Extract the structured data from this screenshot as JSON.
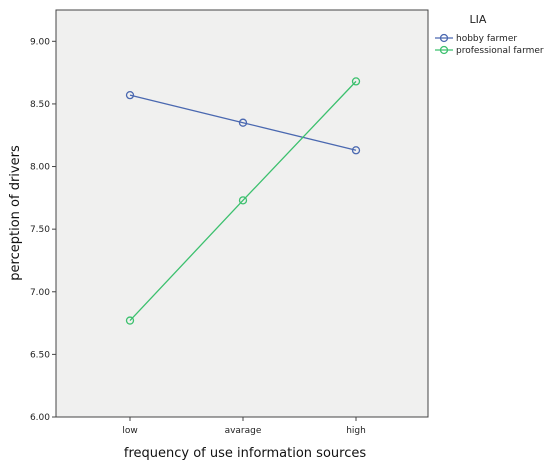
{
  "chart_data": {
    "type": "line",
    "categories": [
      "low",
      "avarage",
      "high"
    ],
    "series": [
      {
        "name": "hobby farmer",
        "values": [
          8.57,
          8.35,
          8.13
        ],
        "color": "#4a68b0"
      },
      {
        "name": "professional farmer",
        "values": [
          6.77,
          7.73,
          8.68
        ],
        "color": "#3cc06e"
      }
    ],
    "xlabel": "frequency of use information sources",
    "ylabel": "perception of drivers",
    "ylim": [
      6.0,
      9.25
    ],
    "yticks": [
      "6.00",
      "6.50",
      "7.00",
      "7.50",
      "8.00",
      "8.50",
      "9.00"
    ],
    "legend": {
      "title": "LIA",
      "placement": "right"
    },
    "plot_background": "#f0f0ef",
    "marker": "open-circle"
  }
}
